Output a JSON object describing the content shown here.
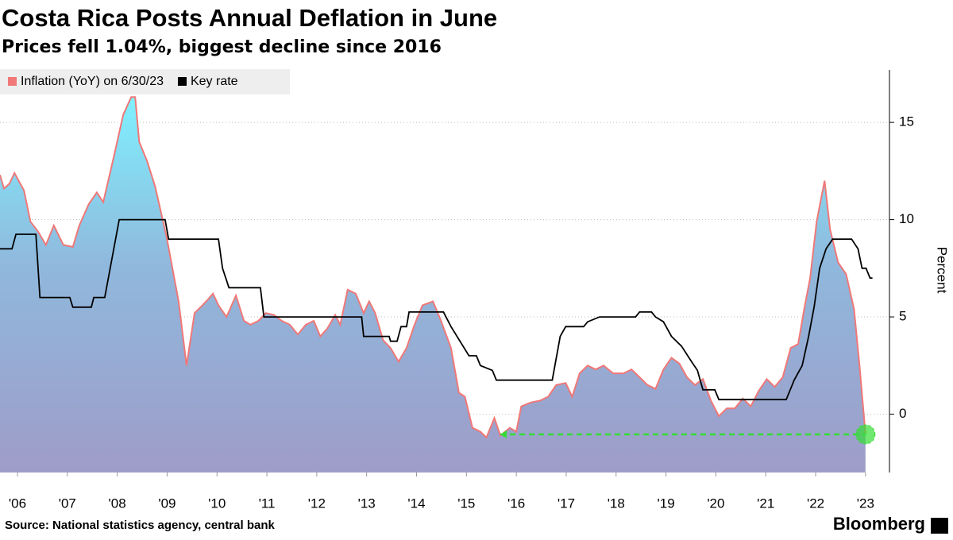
{
  "chart_data": {
    "type": "line",
    "title": "Costa Rica Posts Annual Deflation in June",
    "subtitle": "Prices fell 1.04%, biggest decline since 2016",
    "y_axis_label": "Percent",
    "source": "Source: National statistics agency, central bank",
    "brand": "Bloomberg",
    "xlim": [
      2006.15,
      2023.98
    ],
    "ylim": [
      -3,
      17.7
    ],
    "yticks": [
      0,
      5,
      10,
      15
    ],
    "xticks": [
      {
        "value": 2006.5,
        "label": "'06"
      },
      {
        "value": 2007.5,
        "label": "'07"
      },
      {
        "value": 2008.5,
        "label": "'08"
      },
      {
        "value": 2009.5,
        "label": "'09"
      },
      {
        "value": 2010.5,
        "label": "'10"
      },
      {
        "value": 2011.5,
        "label": "'11"
      },
      {
        "value": 2012.5,
        "label": "'12"
      },
      {
        "value": 2013.5,
        "label": "'13"
      },
      {
        "value": 2014.5,
        "label": "'14"
      },
      {
        "value": 2015.5,
        "label": "'15"
      },
      {
        "value": 2016.5,
        "label": "'16"
      },
      {
        "value": 2017.5,
        "label": "'17"
      },
      {
        "value": 2018.5,
        "label": "'18"
      },
      {
        "value": 2019.5,
        "label": "'19"
      },
      {
        "value": 2020.5,
        "label": "'20"
      },
      {
        "value": 2021.5,
        "label": "'21"
      },
      {
        "value": 2022.5,
        "label": "'22"
      },
      {
        "value": 2023.5,
        "label": "'23"
      }
    ],
    "grid": true,
    "legend_position": "top-left",
    "series": [
      {
        "name": "Inflation (YoY) on 6/30/23",
        "color": "#f07878",
        "area": true,
        "x": [
          2006.15,
          2006.23,
          2006.34,
          2006.44,
          2006.63,
          2006.76,
          2006.91,
          2007.07,
          2007.23,
          2007.42,
          2007.61,
          2007.74,
          2007.93,
          2008.09,
          2008.22,
          2008.41,
          2008.62,
          2008.78,
          2008.86,
          2008.94,
          2009.1,
          2009.26,
          2009.49,
          2009.73,
          2009.89,
          2010.05,
          2010.21,
          2010.32,
          2010.42,
          2010.53,
          2010.69,
          2010.88,
          2011.04,
          2011.17,
          2011.33,
          2011.48,
          2011.64,
          2011.8,
          2011.96,
          2012.12,
          2012.28,
          2012.44,
          2012.57,
          2012.71,
          2012.87,
          2012.97,
          2013.12,
          2013.28,
          2013.44,
          2013.55,
          2013.67,
          2013.83,
          2013.98,
          2014.14,
          2014.3,
          2014.46,
          2014.62,
          2014.83,
          2014.99,
          2015.19,
          2015.35,
          2015.47,
          2015.62,
          2015.78,
          2015.9,
          2016.06,
          2016.18,
          2016.37,
          2016.5,
          2016.6,
          2016.79,
          2016.98,
          2017.14,
          2017.3,
          2017.49,
          2017.62,
          2017.77,
          2017.93,
          2018.09,
          2018.25,
          2018.44,
          2018.65,
          2018.81,
          2018.97,
          2019.13,
          2019.29,
          2019.45,
          2019.61,
          2019.77,
          2019.92,
          2020.08,
          2020.24,
          2020.4,
          2020.56,
          2020.72,
          2020.88,
          2021.04,
          2021.2,
          2021.36,
          2021.52,
          2021.68,
          2021.84,
          2022.0,
          2022.15,
          2022.27,
          2022.39,
          2022.52,
          2022.68,
          2022.79,
          2022.95,
          2023.11,
          2023.27,
          2023.38,
          2023.5
        ],
        "values": [
          12.3,
          11.6,
          11.85,
          12.4,
          11.5,
          9.9,
          9.4,
          8.7,
          9.7,
          8.7,
          8.6,
          9.7,
          10.8,
          11.4,
          10.9,
          13.0,
          15.4,
          16.3,
          16.3,
          14.0,
          13.0,
          11.7,
          9.1,
          5.8,
          2.5,
          5.2,
          5.6,
          5.9,
          6.2,
          5.6,
          5.0,
          6.1,
          4.8,
          4.6,
          4.8,
          5.2,
          5.1,
          4.8,
          4.6,
          4.1,
          4.6,
          4.8,
          4.0,
          4.4,
          5.1,
          4.6,
          6.4,
          6.2,
          5.2,
          5.8,
          5.2,
          3.8,
          3.4,
          2.7,
          3.4,
          4.6,
          5.6,
          5.8,
          4.8,
          3.4,
          1.1,
          0.9,
          -0.7,
          -0.9,
          -1.2,
          -0.2,
          -1.1,
          -0.7,
          -0.9,
          0.4,
          0.6,
          0.7,
          0.9,
          1.5,
          1.6,
          0.9,
          2.1,
          2.5,
          2.3,
          2.5,
          2.1,
          2.1,
          2.3,
          1.9,
          1.5,
          1.3,
          2.3,
          2.9,
          2.6,
          1.9,
          1.5,
          1.8,
          0.7,
          -0.1,
          0.3,
          0.3,
          0.8,
          0.4,
          1.2,
          1.8,
          1.4,
          1.9,
          3.4,
          3.6,
          5.4,
          7.0,
          9.9,
          12.0,
          9.5,
          7.8,
          7.2,
          5.4,
          2.5,
          -1.04
        ]
      },
      {
        "name": "Key rate",
        "color": "#000000",
        "area": false,
        "x": [
          2006.15,
          2006.39,
          2006.47,
          2006.87,
          2006.95,
          2007.55,
          2007.61,
          2007.98,
          2008.03,
          2008.25,
          2008.54,
          2009.46,
          2009.53,
          2010.53,
          2010.61,
          2010.74,
          2011.37,
          2011.44,
          2013.4,
          2013.44,
          2013.95,
          2013.98,
          2014.11,
          2014.19,
          2014.3,
          2014.35,
          2015.04,
          2015.19,
          2015.55,
          2015.7,
          2015.78,
          2016.02,
          2016.1,
          2017.22,
          2017.38,
          2017.49,
          2017.85,
          2017.93,
          2018.17,
          2018.89,
          2018.97,
          2019.21,
          2019.29,
          2019.45,
          2019.61,
          2019.81,
          2020.0,
          2020.13,
          2020.24,
          2020.48,
          2020.56,
          2021.91,
          2022.07,
          2022.23,
          2022.36,
          2022.47,
          2022.58,
          2022.71,
          2022.84,
          2023.22,
          2023.35,
          2023.43,
          2023.51,
          2023.59,
          2023.64
        ],
        "values": [
          8.5,
          8.5,
          9.25,
          9.25,
          6,
          6,
          5.5,
          5.5,
          6,
          6,
          10,
          10,
          9,
          9,
          7.5,
          6.5,
          6.5,
          5,
          5,
          4,
          4,
          3.75,
          3.75,
          4.5,
          4.5,
          5.25,
          5.25,
          4.5,
          3,
          3,
          2.5,
          2.25,
          1.75,
          1.75,
          4,
          4.5,
          4.5,
          4.75,
          5,
          5,
          5.25,
          5.25,
          5,
          4.75,
          4,
          3.5,
          2.75,
          2.25,
          1.25,
          1.25,
          0.75,
          0.75,
          1.75,
          2.5,
          4,
          5.5,
          7.5,
          8.5,
          9,
          9,
          8.5,
          7.5,
          7.5,
          7,
          7
        ]
      }
    ],
    "reference_line": {
      "value": -1.04,
      "x_start": 2016.18,
      "x_end": 2023.5,
      "color": "#33dd33"
    }
  }
}
